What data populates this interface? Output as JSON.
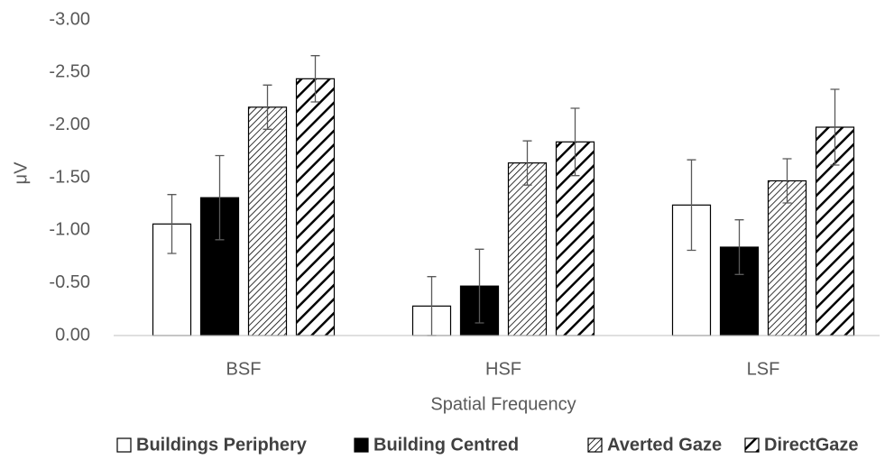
{
  "chart_data": {
    "type": "bar",
    "x_label": "Spatial Frequency",
    "y_label": "μV",
    "categories": [
      "BSF",
      "HSF",
      "LSF"
    ],
    "series": [
      {
        "name": "Buildings Periphery",
        "color": "#ffffff",
        "hatch": "none",
        "values": [
          -1.06,
          -0.28,
          -1.24
        ],
        "errors": [
          0.28,
          0.28,
          0.43
        ]
      },
      {
        "name": "Building Centred",
        "color": "#000000",
        "hatch": "none",
        "values": [
          -1.31,
          -0.47,
          -0.84
        ],
        "errors": [
          0.4,
          0.35,
          0.26
        ]
      },
      {
        "name": "Averted Gaze",
        "color": "#ffffff",
        "hatch": "fine",
        "values": [
          -2.17,
          -1.64,
          -1.47
        ],
        "errors": [
          0.21,
          0.21,
          0.21
        ]
      },
      {
        "name": "DirectGaze",
        "color": "#ffffff",
        "hatch": "bold",
        "values": [
          -2.44,
          -1.84,
          -1.98
        ],
        "errors": [
          0.22,
          0.32,
          0.36
        ]
      }
    ],
    "ylim": [
      0,
      -3
    ],
    "yticks": [
      {
        "value": 0,
        "label": "0.00"
      },
      {
        "value": -0.5,
        "label": "-0.50"
      },
      {
        "value": -1,
        "label": "-1.00"
      },
      {
        "value": -1.5,
        "label": "-1.50"
      },
      {
        "value": -2,
        "label": "-2.00"
      },
      {
        "value": -2.5,
        "label": "-2.50"
      },
      {
        "value": -3,
        "label": "-3.00"
      }
    ],
    "grid": false,
    "legend": "bottom"
  }
}
